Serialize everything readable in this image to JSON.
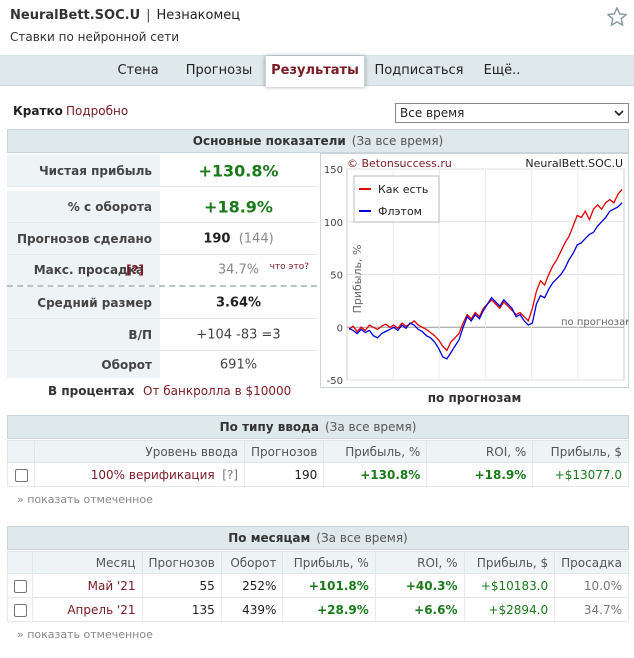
{
  "header": {
    "name": "NeuralBett.SOC.U",
    "separator": "|",
    "status": "Незнакомец",
    "subtitle": "Ставки по нейронной сети"
  },
  "tabs": [
    {
      "label": "Стена"
    },
    {
      "label": "Прогнозы"
    },
    {
      "label": "Результаты",
      "active": true
    },
    {
      "label": "Подписаться"
    },
    {
      "label": "Ещё.."
    }
  ],
  "view_mode": {
    "short": "Кратко",
    "detailed": "Подробно"
  },
  "period_select": {
    "value": "Все время"
  },
  "main_stats": {
    "title": "Основные показатели",
    "subtitle": "(За все время)",
    "net_profit_label": "Чистая прибыль",
    "net_profit_value": "+130.8%",
    "turnover_pct_label": "% с оборота",
    "turnover_pct_value": "+18.9%",
    "forecasts_label": "Прогнозов сделано",
    "forecasts_value": "190",
    "forecasts_extra": "(144)",
    "drawdown_label": "Макс. просадка",
    "drawdown_help": "[?]",
    "drawdown_value": "34.7%",
    "drawdown_whats": "что это?",
    "avg_size_label": "Средний размер",
    "avg_size_value": "3.64%",
    "wl_label": "В/П",
    "wl_win": "+104",
    "wl_lose": "-83",
    "wl_draw": "=3",
    "turnover_label": "Оборот",
    "turnover_value": "691%",
    "units_percent": "В процентах",
    "units_bankroll": "От банкролла в $10000"
  },
  "chart_data": {
    "type": "line",
    "watermark_left": "© Betonsuccess.ru",
    "watermark_right": "NeuralBett.SOC.U",
    "ylabel": "Прибыль, %",
    "xlabel": "по прогнозам",
    "x_annotation": "по прогнозам",
    "ylim": [
      -50,
      150
    ],
    "yticks": [
      "150",
      "100",
      "50",
      "0",
      "-50"
    ],
    "grid": true,
    "legend_position": "top-left",
    "series": [
      {
        "name": "Как есть",
        "color": "#e00000",
        "values": [
          -2,
          1,
          -4,
          0,
          -3,
          2,
          0,
          -2,
          1,
          3,
          0,
          2,
          -1,
          4,
          1,
          3,
          6,
          2,
          0,
          -2,
          -5,
          -8,
          -12,
          -18,
          -22,
          -14,
          -10,
          -6,
          4,
          12,
          8,
          14,
          10,
          18,
          22,
          26,
          22,
          18,
          24,
          20,
          16,
          12,
          14,
          10,
          6,
          18,
          34,
          44,
          40,
          50,
          58,
          64,
          72,
          80,
          86,
          96,
          106,
          104,
          110,
          102,
          112,
          116,
          112,
          118,
          121,
          118,
          126,
          130.8
        ]
      },
      {
        "name": "Флэтом",
        "color": "#0000dd",
        "values": [
          -1,
          -3,
          -6,
          -2,
          -5,
          -3,
          -8,
          -10,
          -6,
          -4,
          -2,
          0,
          -3,
          2,
          -1,
          4,
          2,
          -2,
          -4,
          -8,
          -10,
          -14,
          -20,
          -28,
          -30,
          -24,
          -18,
          -12,
          0,
          10,
          6,
          12,
          8,
          16,
          22,
          28,
          24,
          20,
          26,
          22,
          18,
          10,
          12,
          6,
          2,
          4,
          22,
          30,
          28,
          36,
          42,
          46,
          50,
          56,
          64,
          70,
          78,
          80,
          84,
          88,
          90,
          96,
          100,
          104,
          110,
          112,
          114,
          118
        ]
      }
    ]
  },
  "by_type": {
    "title": "По типу ввода",
    "subtitle": "(За все время)",
    "columns": [
      "Уровень ввода",
      "Прогнозов",
      "Прибыль, %",
      "ROI, %",
      "Прибыль, $"
    ],
    "rows": [
      {
        "level": "100% верификация",
        "help": "[?]",
        "count": "190",
        "profit_pct": "+130.8%",
        "roi": "+18.9%",
        "profit_usd": "+$13077.0"
      }
    ],
    "show_checked": "» показать отмеченное"
  },
  "by_month": {
    "title": "По месяцам",
    "subtitle": "(За все время)",
    "columns": [
      "Месяц",
      "Прогнозов",
      "Оборот",
      "Прибыль, %",
      "ROI, %",
      "Прибыль, $",
      "Просадка"
    ],
    "rows": [
      {
        "month": "Май '21",
        "count": "55",
        "turnover": "252%",
        "profit_pct": "+101.8%",
        "roi": "+40.3%",
        "profit_usd": "+$10183.0",
        "drawdown": "10.0%"
      },
      {
        "month": "Апрель '21",
        "count": "135",
        "turnover": "439%",
        "profit_pct": "+28.9%",
        "roi": "+6.6%",
        "profit_usd": "+$2894.0",
        "drawdown": "34.7%"
      }
    ],
    "show_checked": "» показать отмеченное"
  }
}
